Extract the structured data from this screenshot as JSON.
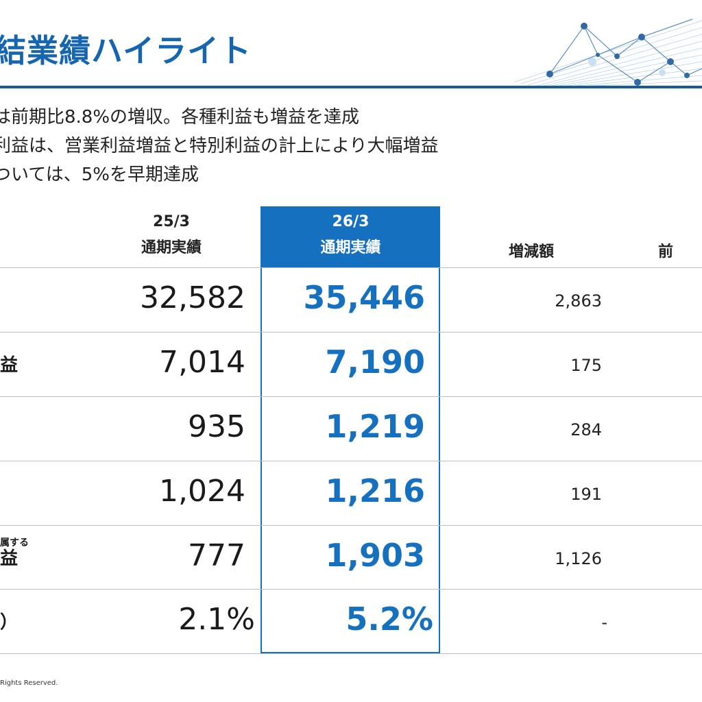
{
  "page": {
    "title": "結業績ハイライト",
    "bullets": [
      "は前期比8.8%の増収。各種利益も増益を達成",
      "利益は、営業利益増益と特別利益の計上により大幅増益",
      "ついては、5%を早期達成"
    ],
    "footer": "Rights Reserved."
  },
  "table": {
    "headers": {
      "prev_line1": "25/3",
      "prev_line2": "通期実績",
      "cur_line1": "26/3",
      "cur_line2": "通期実績",
      "diff": "増減額",
      "rate": "前"
    },
    "rows": [
      {
        "label": "",
        "small_label": "",
        "prev": "32,582",
        "cur": "35,446",
        "diff": "2,863"
      },
      {
        "label": "益",
        "small_label": "",
        "prev": "7,014",
        "cur": "7,190",
        "diff": "175"
      },
      {
        "label": "",
        "small_label": "",
        "prev": "935",
        "cur": "1,219",
        "diff": "284"
      },
      {
        "label": "",
        "small_label": "",
        "prev": "1,024",
        "cur": "1,216",
        "diff": "191"
      },
      {
        "label": "益",
        "small_label": "属する",
        "prev": "777",
        "cur": "1,903",
        "diff": "1,126"
      },
      {
        "label": "）",
        "small_label": "",
        "prev": "2.1%",
        "cur": "5.2%",
        "diff": "-"
      }
    ]
  },
  "colors": {
    "accent": "#1670c0",
    "title": "#1565b0",
    "rule": "#1a5a99"
  }
}
